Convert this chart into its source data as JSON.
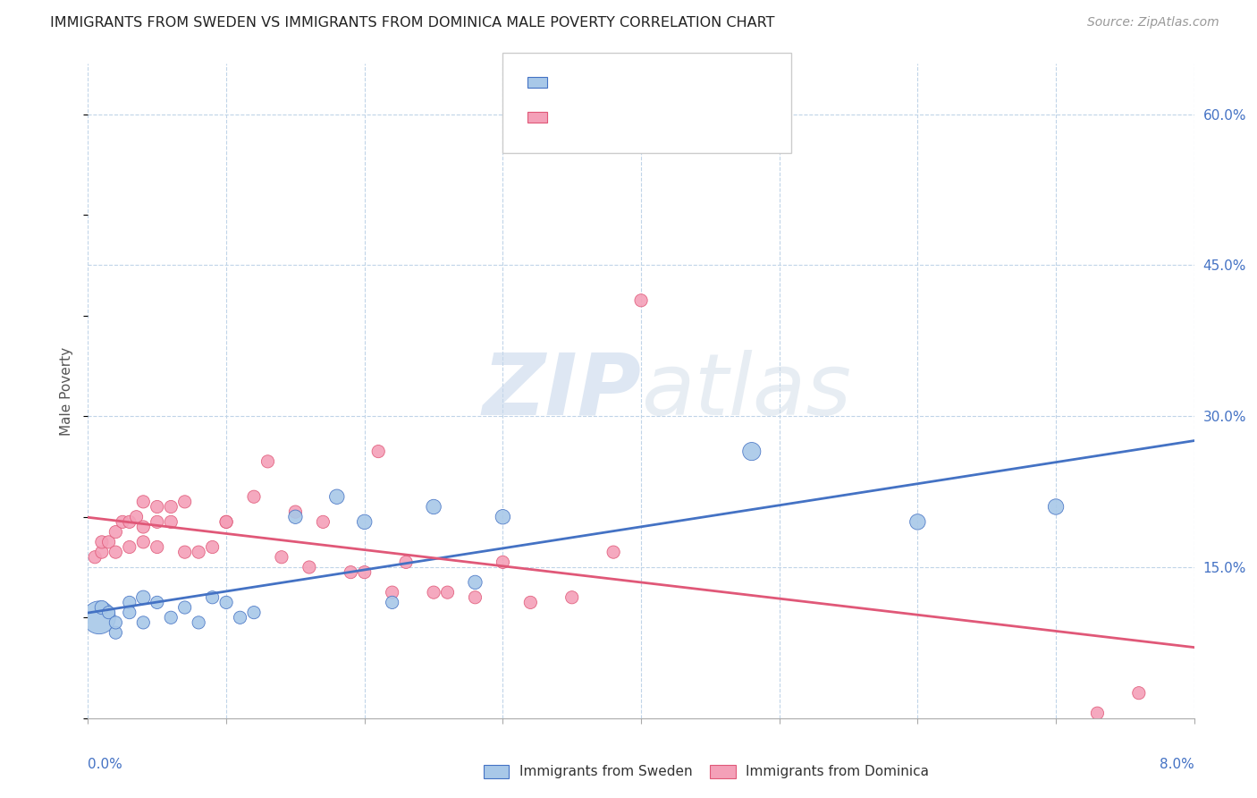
{
  "title": "IMMIGRANTS FROM SWEDEN VS IMMIGRANTS FROM DOMINICA MALE POVERTY CORRELATION CHART",
  "source": "Source: ZipAtlas.com",
  "ylabel": "Male Poverty",
  "sweden_color": "#a8c8e8",
  "sweden_line_color": "#4472c4",
  "dominica_color": "#f4a0b8",
  "dominica_line_color": "#e05878",
  "watermark_zip": "ZIP",
  "watermark_atlas": "atlas",
  "xmin": 0.0,
  "xmax": 0.08,
  "ymin": 0.0,
  "ymax": 0.65,
  "right_yticks": [
    0.0,
    0.15,
    0.3,
    0.45,
    0.6
  ],
  "right_yticklabels": [
    "",
    "15.0%",
    "30.0%",
    "45.0%",
    "60.0%"
  ],
  "sweden_x": [
    0.0008,
    0.001,
    0.0015,
    0.002,
    0.002,
    0.003,
    0.003,
    0.004,
    0.004,
    0.005,
    0.006,
    0.007,
    0.008,
    0.009,
    0.01,
    0.011,
    0.012,
    0.015,
    0.018,
    0.02,
    0.022,
    0.025,
    0.028,
    0.03,
    0.048,
    0.06,
    0.07
  ],
  "sweden_y": [
    0.1,
    0.11,
    0.105,
    0.085,
    0.095,
    0.115,
    0.105,
    0.095,
    0.12,
    0.115,
    0.1,
    0.11,
    0.095,
    0.12,
    0.115,
    0.1,
    0.105,
    0.2,
    0.22,
    0.195,
    0.115,
    0.21,
    0.135,
    0.2,
    0.265,
    0.195,
    0.21
  ],
  "sweden_size": [
    200,
    35,
    30,
    30,
    30,
    30,
    30,
    30,
    35,
    30,
    30,
    30,
    30,
    30,
    30,
    30,
    30,
    35,
    40,
    40,
    30,
    40,
    35,
    40,
    60,
    45,
    45
  ],
  "dominica_x": [
    0.0005,
    0.001,
    0.001,
    0.0015,
    0.002,
    0.002,
    0.0025,
    0.003,
    0.003,
    0.0035,
    0.004,
    0.004,
    0.004,
    0.005,
    0.005,
    0.005,
    0.006,
    0.006,
    0.007,
    0.007,
    0.008,
    0.009,
    0.01,
    0.01,
    0.012,
    0.013,
    0.014,
    0.015,
    0.016,
    0.017,
    0.019,
    0.02,
    0.021,
    0.022,
    0.023,
    0.025,
    0.026,
    0.028,
    0.03,
    0.032,
    0.035,
    0.038,
    0.04,
    0.073,
    0.076
  ],
  "dominica_y": [
    0.16,
    0.165,
    0.175,
    0.175,
    0.165,
    0.185,
    0.195,
    0.17,
    0.195,
    0.2,
    0.175,
    0.19,
    0.215,
    0.17,
    0.195,
    0.21,
    0.195,
    0.21,
    0.165,
    0.215,
    0.165,
    0.17,
    0.195,
    0.195,
    0.22,
    0.255,
    0.16,
    0.205,
    0.15,
    0.195,
    0.145,
    0.145,
    0.265,
    0.125,
    0.155,
    0.125,
    0.125,
    0.12,
    0.155,
    0.115,
    0.12,
    0.165,
    0.415,
    0.005,
    0.025
  ],
  "dominica_size": [
    30,
    30,
    30,
    30,
    30,
    30,
    30,
    30,
    30,
    30,
    30,
    30,
    30,
    30,
    30,
    30,
    30,
    30,
    30,
    30,
    30,
    30,
    30,
    30,
    30,
    30,
    30,
    30,
    30,
    30,
    30,
    30,
    30,
    30,
    30,
    30,
    30,
    30,
    30,
    30,
    30,
    30,
    30,
    30,
    30
  ]
}
